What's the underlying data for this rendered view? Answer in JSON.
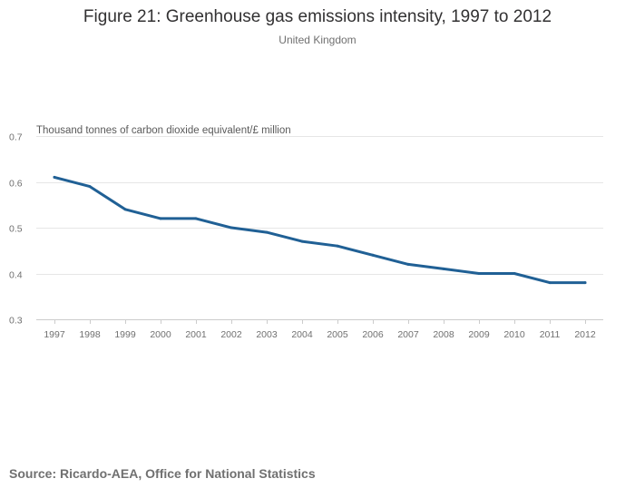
{
  "chart_data": {
    "type": "line",
    "title": "Figure 21: Greenhouse gas emissions intensity, 1997 to 2012",
    "subtitle": "United Kingdom",
    "ylabel": "Thousand tonnes of carbon dioxide equivalent/£ million",
    "xlabel": "",
    "categories": [
      "1997",
      "1998",
      "1999",
      "2000",
      "2001",
      "2002",
      "2003",
      "2004",
      "2005",
      "2006",
      "2007",
      "2008",
      "2009",
      "2010",
      "2011",
      "2012"
    ],
    "series": [
      {
        "name": "Greenhouse gas emissions intensity",
        "color": "#206095",
        "values": [
          0.61,
          0.59,
          0.54,
          0.52,
          0.52,
          0.5,
          0.49,
          0.47,
          0.46,
          0.44,
          0.42,
          0.41,
          0.4,
          0.4,
          0.38,
          0.38
        ]
      }
    ],
    "ylim": [
      0.3,
      0.7
    ],
    "yticks": [
      "0.7",
      "0.6",
      "0.5",
      "0.4",
      "0.3"
    ],
    "grid": true,
    "source": "Source: Ricardo-AEA, Office for National Statistics"
  }
}
